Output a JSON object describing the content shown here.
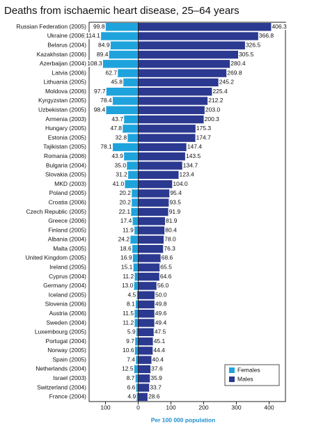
{
  "chart_data": {
    "type": "butterfly",
    "title": "Deaths from ischaemic heart disease, 25–64 years",
    "x_label": "Per 100 000 population",
    "categories": [
      "Russian Federation (2005)",
      "Ukraine (2006)",
      "Belarus (2004)",
      "Kazakhstan (2006)",
      "Azerbaijan (2004)",
      "Latvia (2006)",
      "Lithuania (2005)",
      "Moldova (2006)",
      "Kyrgyzstan (2005)",
      "Uzbekistan (2005)",
      "Armenia (2003)",
      "Hungary (2005)",
      "Estonia (2005)",
      "Tajikistan (2005)",
      "Romania (2006)",
      "Bulgaria (2004)",
      "Slovakia (2005)",
      "MKD (2003)",
      "Poland (2005)",
      "Croatia (2006)",
      "Czech Republic (2005)",
      "Greece (2006)",
      "Finland (2005)",
      "Albania (2004)",
      "Malta (2005)",
      "United Kingdom (2005)",
      "Ireland (2005)",
      "Cyprus (2004)",
      "Germany (2004)",
      "Iceland (2005)",
      "Slovenia (2006)",
      "Austria (2006)",
      "Sweden (2004)",
      "Luxembourg (2005)",
      "Portugal (2004)",
      "Norway (2005)",
      "Spain (2005)",
      "Netherlands (2004)",
      "Israel (2003)",
      "Switzerland (2004)",
      "France (2004)"
    ],
    "series": [
      {
        "name": "Females",
        "color": "#1fa3dc",
        "side": "left",
        "values": [
          99.8,
          114.1,
          84.9,
          89.4,
          108.3,
          62.7,
          45.8,
          97.7,
          78.4,
          98.4,
          43.7,
          47.8,
          32.8,
          78.1,
          43.9,
          35.0,
          31.2,
          41.0,
          20.2,
          20.2,
          22.1,
          17.4,
          11.9,
          24.2,
          18.6,
          16.9,
          15.1,
          11.2,
          13.0,
          4.5,
          8.1,
          11.5,
          11.2,
          5.9,
          9.7,
          10.6,
          7.4,
          12.5,
          8.7,
          6.6,
          4.9
        ],
        "value_labels": [
          "99.8",
          "114.1",
          "84.9",
          "89.4",
          "108.3",
          "62.7",
          "45.8",
          "97.7",
          "78.4",
          "98.4",
          "43.7",
          "47.8",
          "32.8",
          "78.1",
          "43.9",
          "35.0",
          "31.2",
          "41.0",
          "20.2",
          "20.2",
          "22.1",
          "17.4",
          "11.9",
          "24.2",
          "18.6",
          "16.9",
          "15.1",
          "11.2",
          "13.0",
          "4.5",
          "8.1",
          "11.5",
          "11.2",
          "5.9",
          "9.7",
          "10.6",
          "7.4",
          "12.5",
          "8.7",
          "6.6",
          "4.9"
        ]
      },
      {
        "name": "Males",
        "color": "#2b3990",
        "side": "right",
        "values": [
          406.3,
          366.8,
          326.5,
          305.5,
          280.4,
          269.8,
          245.2,
          225.4,
          212.2,
          203.0,
          200.3,
          175.3,
          174.7,
          147.4,
          143.5,
          134.7,
          123.4,
          104.0,
          95.4,
          93.5,
          91.9,
          81.9,
          80.4,
          78.0,
          76.3,
          68.6,
          65.5,
          64.6,
          56.0,
          50.0,
          49.8,
          49.6,
          49.4,
          47.5,
          45.1,
          44.4,
          40.4,
          37.6,
          35.9,
          33.7,
          28.6
        ],
        "value_labels": [
          "406.3",
          "366.8",
          "326.5",
          "305.5",
          "280.4",
          "269.8",
          "245.2",
          "225.4",
          "212.2",
          "203.0",
          "200.3",
          "175.3",
          "174.7",
          "147.4",
          "143.5",
          "134.7",
          "123.4",
          "104.0",
          "95.4",
          "93.5",
          "91.9",
          "81.9",
          "80.4",
          "78.0",
          "76.3",
          "68.6",
          "65.5",
          "64.6",
          "56.0",
          "50.0",
          "49.8",
          "49.6",
          "49.4",
          "47.5",
          "45.1",
          "44.4",
          "40.4",
          "37.6",
          "35.9",
          "33.7",
          "28.6"
        ]
      }
    ],
    "xlim": [
      -150,
      450
    ],
    "xticks": [
      {
        "value": -100,
        "label": "100"
      },
      0,
      100,
      200,
      300,
      400
    ],
    "legend": "lower right"
  }
}
